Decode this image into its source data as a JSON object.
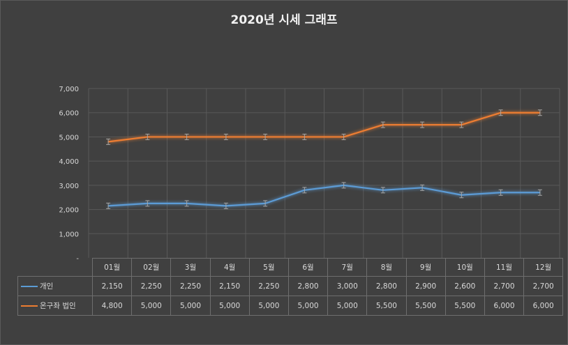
{
  "chart_data": {
    "type": "line",
    "title": "2020년 시세 그래프",
    "categories": [
      "01월",
      "02월",
      "3월",
      "4월",
      "5월",
      "6월",
      "7월",
      "8월",
      "9월",
      "10월",
      "11월",
      "12월"
    ],
    "y_ticks": [
      "-",
      "1,000",
      "2,000",
      "3,000",
      "4,000",
      "5,000",
      "6,000",
      "7,000"
    ],
    "ylim": [
      0,
      7000
    ],
    "grid": true,
    "error_bars": true,
    "legend": "data-table",
    "series": [
      {
        "name": "개인",
        "color": "#5b9bd5",
        "values": [
          2150,
          2250,
          2250,
          2150,
          2250,
          2800,
          3000,
          2800,
          2900,
          2600,
          2700,
          2700
        ],
        "labels": [
          "2,150",
          "2,250",
          "2,250",
          "2,150",
          "2,250",
          "2,800",
          "3,000",
          "2,800",
          "2,900",
          "2,600",
          "2,700",
          "2,700"
        ]
      },
      {
        "name": "온구좌 법인",
        "color": "#ed7d31",
        "values": [
          4800,
          5000,
          5000,
          5000,
          5000,
          5000,
          5000,
          5500,
          5500,
          5500,
          6000,
          6000
        ],
        "labels": [
          "4,800",
          "5,000",
          "5,000",
          "5,000",
          "5,000",
          "5,000",
          "5,000",
          "5,500",
          "5,500",
          "5,500",
          "6,000",
          "6,000"
        ]
      }
    ]
  }
}
